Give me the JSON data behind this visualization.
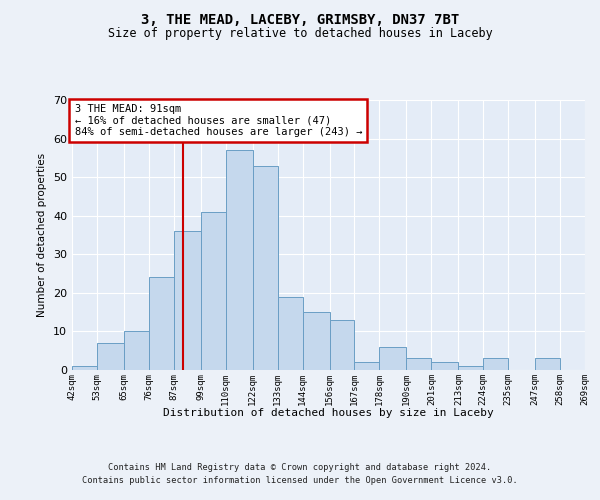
{
  "title1": "3, THE MEAD, LACEBY, GRIMSBY, DN37 7BT",
  "title2": "Size of property relative to detached houses in Laceby",
  "xlabel": "Distribution of detached houses by size in Laceby",
  "ylabel": "Number of detached properties",
  "bin_lefts": [
    42,
    53,
    65,
    76,
    87,
    99,
    110,
    122,
    133,
    144,
    156,
    167,
    178,
    190,
    201,
    213,
    224,
    235,
    247,
    258
  ],
  "bin_rights": [
    53,
    65,
    76,
    87,
    99,
    110,
    122,
    133,
    144,
    156,
    167,
    178,
    190,
    201,
    213,
    224,
    235,
    247,
    258,
    269
  ],
  "heights": [
    1,
    7,
    10,
    24,
    36,
    41,
    57,
    53,
    19,
    15,
    13,
    2,
    6,
    3,
    2,
    1,
    3,
    0,
    3,
    0
  ],
  "bar_color": "#c5d8ed",
  "bar_edge_color": "#6a9ec5",
  "vline_x": 91,
  "vline_color": "#cc0000",
  "annotation_text": "3 THE MEAD: 91sqm\n← 16% of detached houses are smaller (47)\n84% of semi-detached houses are larger (243) →",
  "annotation_box_facecolor": "#ffffff",
  "annotation_box_edgecolor": "#cc0000",
  "ylim": [
    0,
    70
  ],
  "yticks": [
    0,
    10,
    20,
    30,
    40,
    50,
    60,
    70
  ],
  "tick_positions": [
    42,
    53,
    65,
    76,
    87,
    99,
    110,
    122,
    133,
    144,
    156,
    167,
    178,
    190,
    201,
    213,
    224,
    235,
    247,
    258,
    269
  ],
  "footer_line1": "Contains HM Land Registry data © Crown copyright and database right 2024.",
  "footer_line2": "Contains public sector information licensed under the Open Government Licence v3.0.",
  "bg_color": "#ecf1f8",
  "plot_bg_color": "#e4ecf7",
  "grid_color": "#ffffff"
}
